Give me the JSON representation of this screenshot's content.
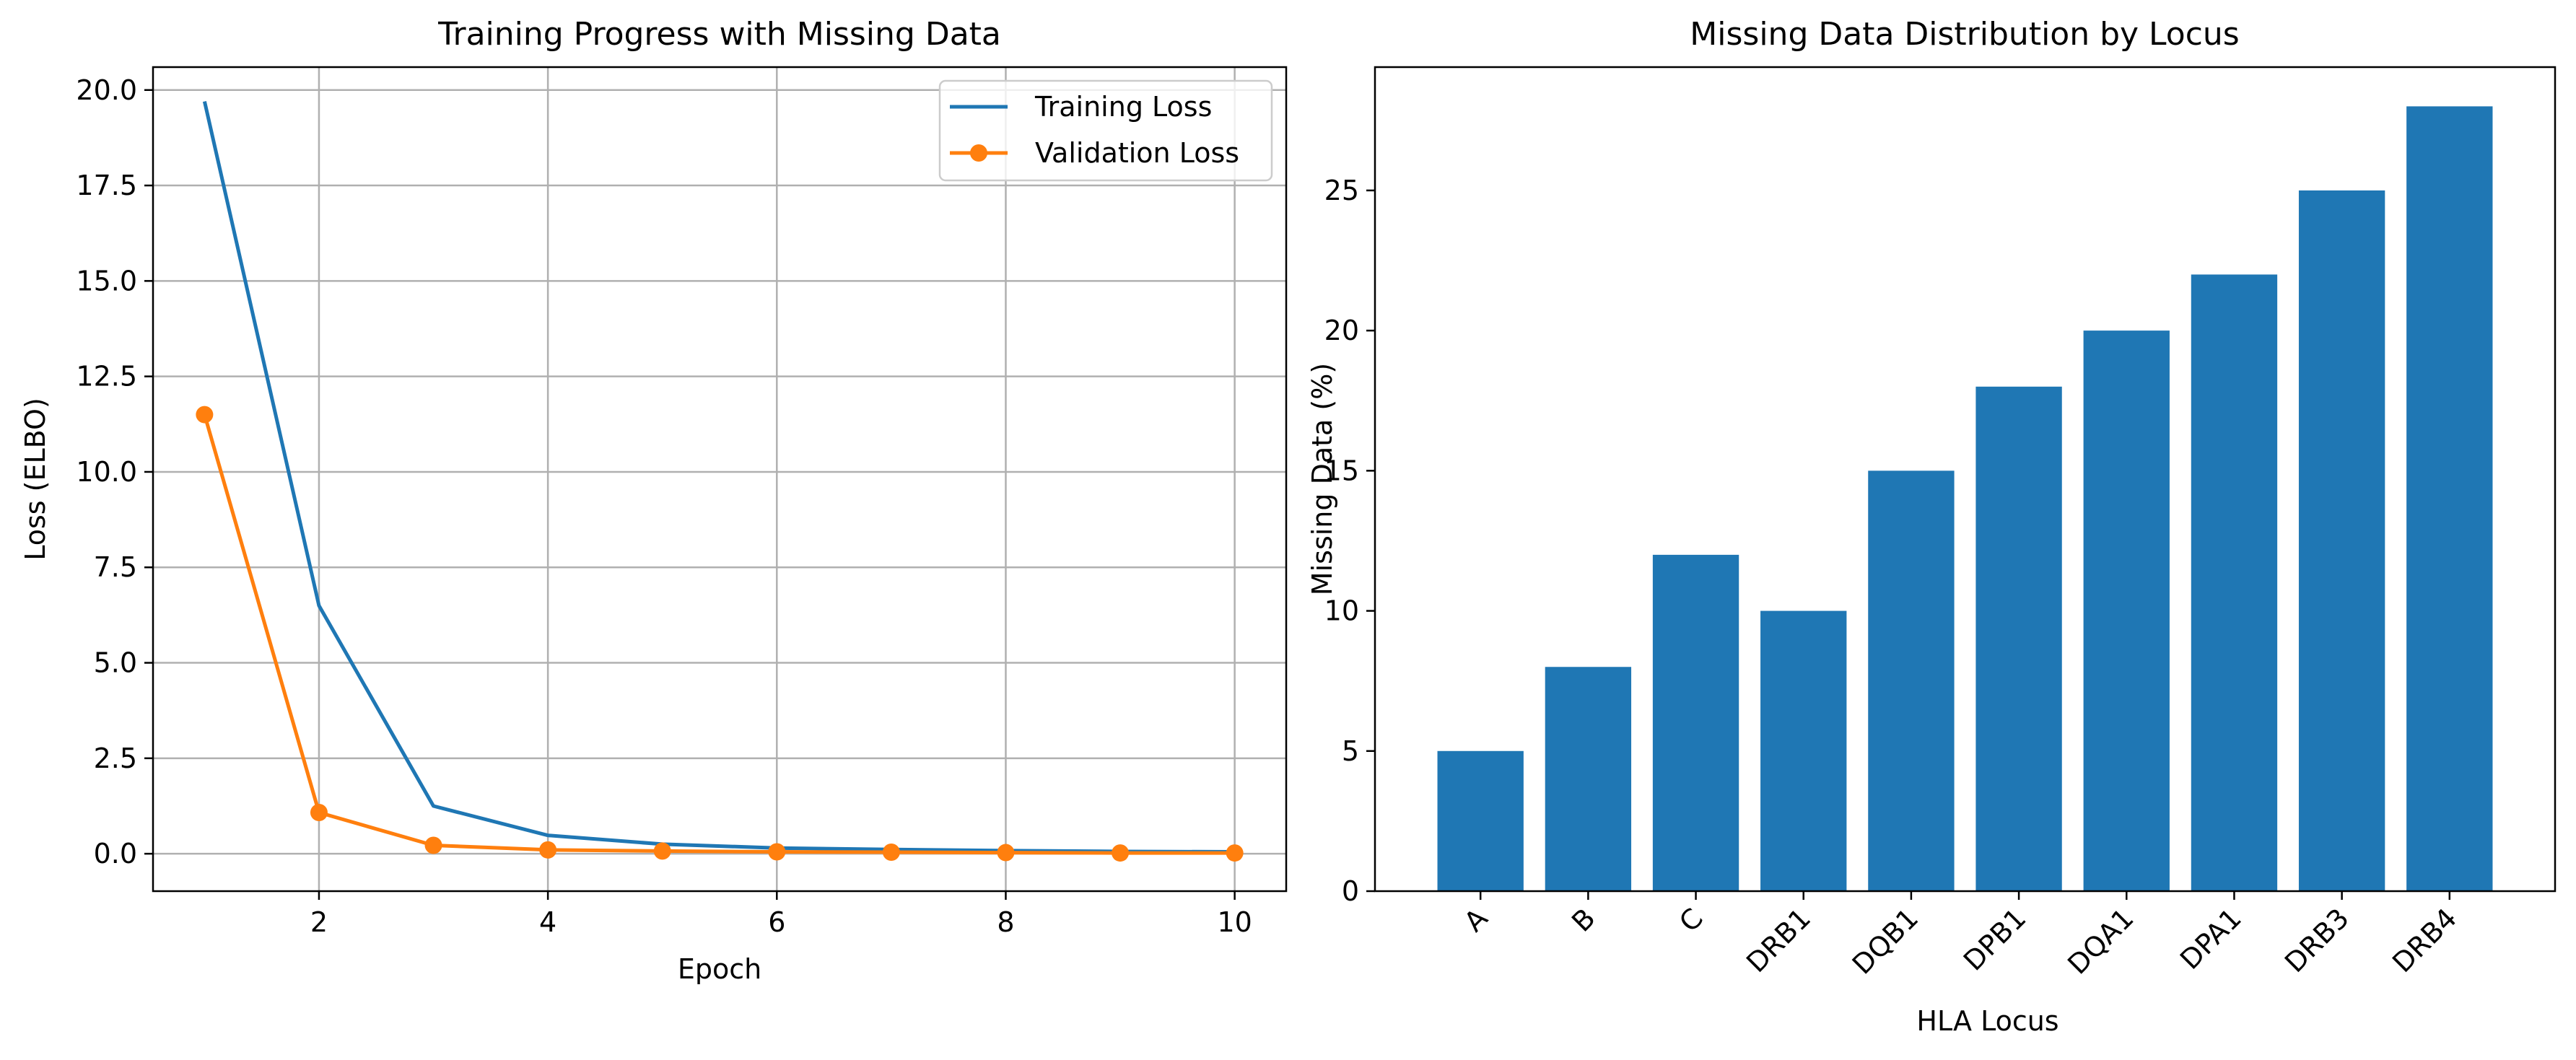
{
  "chart_data": [
    {
      "type": "line",
      "title": "Training Progress with Missing Data",
      "xlabel": "Epoch",
      "ylabel": "Loss (ELBO)",
      "xlim": [
        0.55,
        10.45
      ],
      "ylim": [
        -0.98,
        20.6
      ],
      "xticks": [
        2,
        4,
        6,
        8,
        10
      ],
      "xtick_labels": [
        "2",
        "4",
        "6",
        "8",
        "10"
      ],
      "yticks": [
        0,
        2.5,
        5,
        7.5,
        10,
        12.5,
        15,
        17.5,
        20
      ],
      "ytick_labels": [
        "0.0",
        "2.5",
        "5.0",
        "7.5",
        "10.0",
        "12.5",
        "15.0",
        "17.5",
        "20.0"
      ],
      "grid": true,
      "legend_position": "top-right",
      "x": [
        1,
        2,
        3,
        4,
        5,
        6,
        7,
        8,
        9,
        10
      ],
      "series": [
        {
          "name": "Training Loss",
          "color": "#1f77b4",
          "marker": "none",
          "values": [
            19.7,
            6.5,
            1.25,
            0.48,
            0.25,
            0.15,
            0.11,
            0.08,
            0.06,
            0.05
          ]
        },
        {
          "name": "Validation Loss",
          "color": "#ff7f0e",
          "marker": "circle",
          "values": [
            11.5,
            1.08,
            0.22,
            0.1,
            0.07,
            0.05,
            0.04,
            0.03,
            0.02,
            0.02
          ]
        }
      ]
    },
    {
      "type": "bar",
      "title": "Missing Data Distribution by Locus",
      "xlabel": "HLA Locus",
      "ylabel": "Missing Data (%)",
      "ylim": [
        0,
        29.4
      ],
      "yticks": [
        0,
        5,
        10,
        15,
        20,
        25
      ],
      "ytick_labels": [
        "0",
        "5",
        "10",
        "15",
        "20",
        "25"
      ],
      "grid": false,
      "tick_label_rotation": 45,
      "color": "#1f77b4",
      "categories": [
        "A",
        "B",
        "C",
        "DRB1",
        "DQB1",
        "DPB1",
        "DQA1",
        "DPA1",
        "DRB3",
        "DRB4"
      ],
      "values": [
        5,
        8,
        12,
        10,
        15,
        18,
        20,
        22,
        25,
        28
      ]
    }
  ]
}
